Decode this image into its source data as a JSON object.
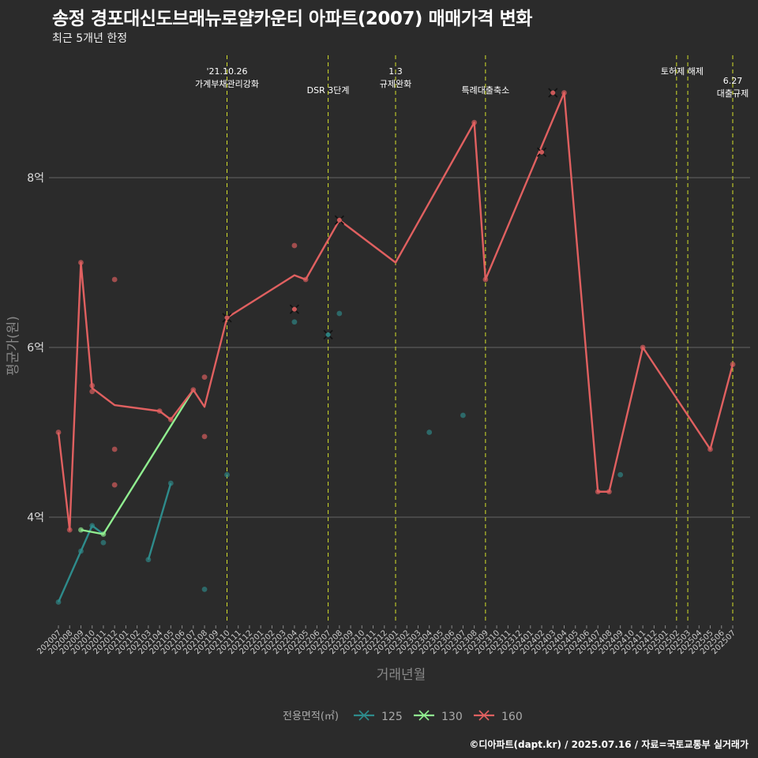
{
  "header": {
    "title": "송정 경포대신도브래뉴로얄카운티 아파트(2007) 매매가격 변화",
    "subtitle": "최근 5개년 한정"
  },
  "footer": {
    "caption": "©디아파트(dapt.kr) / 2025.07.16 / 자료=국토교통부 실거래가"
  },
  "chart_data": {
    "type": "line",
    "xlabel": "거래년월",
    "ylabel": "평균가(원)",
    "ylim": [
      2.7,
      9.8
    ],
    "yticks": [
      4,
      6,
      8
    ],
    "ytick_labels": [
      "4억",
      "6억",
      "8억"
    ],
    "y_unit_note": "억원",
    "grid": true,
    "legend": {
      "title": "전용면적(㎡)",
      "position": "bottom"
    },
    "categories": [
      "202007",
      "202008",
      "202009",
      "202010",
      "202011",
      "202012",
      "202101",
      "202102",
      "202103",
      "202104",
      "202105",
      "202106",
      "202107",
      "202108",
      "202109",
      "202110",
      "202111",
      "202112",
      "202201",
      "202202",
      "202203",
      "202204",
      "202205",
      "202206",
      "202207",
      "202208",
      "202209",
      "202210",
      "202211",
      "202212",
      "202301",
      "202302",
      "202303",
      "202304",
      "202305",
      "202306",
      "202307",
      "202308",
      "202309",
      "202310",
      "202311",
      "202312",
      "202401",
      "202402",
      "202403",
      "202404",
      "202405",
      "202406",
      "202407",
      "202408",
      "202409",
      "202410",
      "202411",
      "202412",
      "202501",
      "202502",
      "202503",
      "202504",
      "202505",
      "202506",
      "202507"
    ],
    "series": [
      {
        "name": "125",
        "color": "#2e8b8b",
        "line": [
          [
            "202007",
            3.0
          ],
          [
            "202009",
            3.6
          ],
          [
            "202010",
            3.9
          ],
          [
            "202011",
            3.8
          ]
        ],
        "line2": [
          [
            "202103",
            3.5
          ],
          [
            "202105",
            4.4
          ]
        ],
        "points": [
          [
            "202007",
            3.0
          ],
          [
            "202009",
            3.6
          ],
          [
            "202010",
            3.9
          ],
          [
            "202011",
            3.7
          ],
          [
            "202103",
            3.5
          ],
          [
            "202105",
            4.4
          ],
          [
            "202108",
            3.15
          ],
          [
            "202110",
            4.5
          ],
          [
            "202204",
            6.3
          ],
          [
            "202208",
            6.4
          ],
          [
            "202304",
            5.0
          ],
          [
            "202307",
            5.2
          ],
          [
            "202409",
            4.5
          ]
        ],
        "cross": [
          [
            "202207",
            6.15
          ]
        ]
      },
      {
        "name": "130",
        "color": "#90ee90",
        "line": [
          [
            "202009",
            3.85
          ],
          [
            "202011",
            3.8
          ],
          [
            "202107",
            5.5
          ]
        ],
        "points": [
          [
            "202009",
            3.85
          ],
          [
            "202011",
            3.8
          ]
        ],
        "cross": []
      },
      {
        "name": "160",
        "color": "#e06060",
        "line": [
          [
            "202007",
            5.0
          ],
          [
            "202008",
            3.85
          ],
          [
            "202009",
            7.0
          ],
          [
            "202010",
            5.52
          ],
          [
            "202012",
            5.32
          ],
          [
            "202104",
            5.25
          ],
          [
            "202105",
            5.15
          ],
          [
            "202107",
            5.5
          ],
          [
            "202108",
            5.3
          ],
          [
            "202110",
            6.35
          ],
          [
            "202204",
            6.85
          ],
          [
            "202205",
            6.8
          ],
          [
            "202208",
            7.5
          ],
          [
            "202301",
            7.0
          ],
          [
            "202308",
            8.65
          ],
          [
            "202309",
            6.8
          ],
          [
            "202404",
            9.0
          ],
          [
            "202407",
            4.3
          ],
          [
            "202408",
            4.3
          ],
          [
            "202411",
            6.0
          ],
          [
            "202505",
            4.8
          ],
          [
            "202507",
            5.8
          ]
        ],
        "points": [
          [
            "202007",
            5.0
          ],
          [
            "202008",
            3.85
          ],
          [
            "202009",
            7.0
          ],
          [
            "202010",
            5.55
          ],
          [
            "202010",
            5.48
          ],
          [
            "202012",
            6.8
          ],
          [
            "202012",
            4.8
          ],
          [
            "202012",
            4.38
          ],
          [
            "202104",
            5.25
          ],
          [
            "202105",
            5.15
          ],
          [
            "202107",
            5.5
          ],
          [
            "202108",
            5.65
          ],
          [
            "202108",
            4.95
          ],
          [
            "202204",
            7.2
          ],
          [
            "202205",
            6.8
          ],
          [
            "202308",
            8.65
          ],
          [
            "202309",
            6.8
          ],
          [
            "202404",
            9.0
          ],
          [
            "202407",
            4.3
          ],
          [
            "202408",
            4.3
          ],
          [
            "202411",
            6.0
          ],
          [
            "202505",
            4.8
          ],
          [
            "202507",
            5.8
          ]
        ],
        "cross": [
          [
            "202110",
            6.35
          ],
          [
            "202204",
            6.45
          ],
          [
            "202208",
            7.5
          ],
          [
            "202402",
            8.3
          ],
          [
            "202403",
            9.0
          ]
        ]
      }
    ],
    "annotations": [
      {
        "x": "202110",
        "lines": [
          "'21.10.26",
          "가계부채관리강화"
        ],
        "row": 0
      },
      {
        "x": "202207",
        "lines": [
          "DSR 3단계"
        ],
        "row": 1
      },
      {
        "x": "202301",
        "lines": [
          "1.3",
          "규제완화"
        ],
        "row": 0
      },
      {
        "x": "202309",
        "lines": [
          "특례대출축소"
        ],
        "row": 1
      },
      {
        "x": "202502",
        "lines": [],
        "row": 0
      },
      {
        "x": "202503",
        "lines": [
          "토허제 해제"
        ],
        "row": 0,
        "offset_month": -0.5
      },
      {
        "x": "202507",
        "lines": [
          "6.27",
          "대출규제"
        ],
        "row": 0.5
      }
    ]
  }
}
